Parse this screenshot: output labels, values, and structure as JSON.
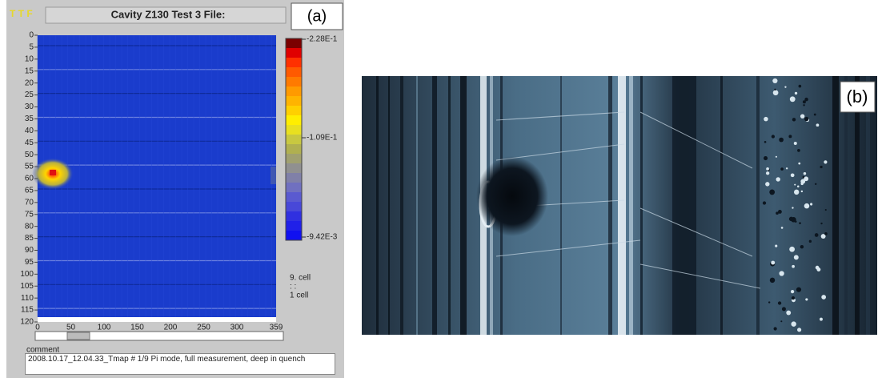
{
  "panel_a": {
    "app_label": "T T F",
    "title": "Cavity Z130  Test 3  File:",
    "label": "(a)",
    "y_ticks": [
      "0",
      "5",
      "10",
      "15",
      "20",
      "25",
      "30",
      "35",
      "40",
      "45",
      "50",
      "55",
      "60",
      "65",
      "70",
      "75",
      "80",
      "85",
      "90",
      "95",
      "100",
      "105",
      "110",
      "115",
      "120"
    ],
    "x_ticks": [
      "0",
      "50",
      "100",
      "150",
      "200",
      "250",
      "300",
      "359"
    ],
    "colorbar_labels": [
      "-2.28E-1",
      "-1.09E-1",
      "-9.42E-3"
    ],
    "cell_labels": [
      "9. cell",
      ":    :",
      "1 cell"
    ],
    "comment_label": "comment",
    "comment": "2008.10.17_12.04.33_Tmap # 1/9 Pi mode, full measurement, deep in quench"
  },
  "panel_b": {
    "label": "(b)"
  }
}
